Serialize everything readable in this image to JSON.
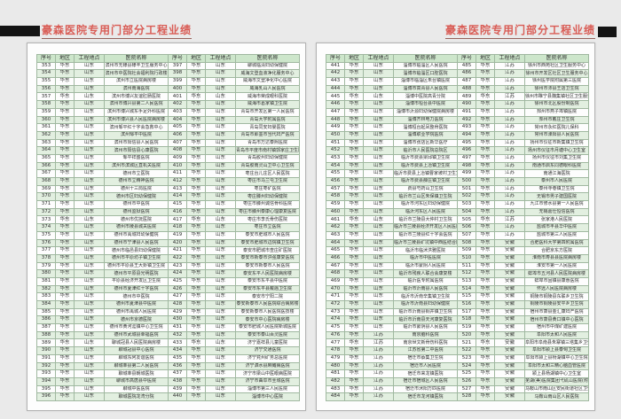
{
  "titles": {
    "left": "豪森医院专用门部分工程业绩",
    "right": "豪森医院专用门部分工程业绩"
  },
  "table": {
    "headers": [
      "序号",
      "地区",
      "工程地点",
      "医院名称"
    ]
  },
  "colors": {
    "title_red": "#d95c55",
    "table_header_bg": "#cde6cb",
    "row_alt_bg": "#e2efe0",
    "grid_line": "#a0b8a0",
    "bar_black": "#141414"
  },
  "pages": [
    {
      "rows": [
        [
          "353",
          "华东",
          "山东",
          "滨州市无棣县棣丰卫生服务中心"
        ],
        [
          "354",
          "华东",
          "山东",
          "滨州市中医院社会福利院行政楼"
        ],
        [
          "355",
          "华东",
          "山东",
          "滨州市立医院病房楼"
        ],
        [
          "356",
          "华东",
          "山东",
          "滨州南海医院"
        ],
        [
          "357",
          "华东",
          "山东",
          "滨州市博兴友谊肛肠医院"
        ],
        [
          "358",
          "华东",
          "山东",
          "滨州市博兴县第二人民医院"
        ],
        [
          "359",
          "华东",
          "山东",
          "滨州市博兴城东手足外科医院"
        ],
        [
          "360",
          "华东",
          "山东",
          "滨州市博兴县人民医院病房楼"
        ],
        [
          "361",
          "华东",
          "山东",
          "滨州邹平红十字会急救中心"
        ],
        [
          "362",
          "华东",
          "山东",
          "滨州邹平中医院"
        ],
        [
          "363",
          "华东",
          "山东",
          "滨州市阳信县人民医院"
        ],
        [
          "364",
          "华东",
          "山东",
          "滨州市阳信县心康医院"
        ],
        [
          "365",
          "华东",
          "山东",
          "邹平祥盛医院"
        ],
        [
          "366",
          "华东",
          "山东",
          "滨州市滨城区直机关医院"
        ],
        [
          "367",
          "华东",
          "山东",
          "德州市立医院"
        ],
        [
          "368",
          "华东",
          "山东",
          "德州市立精神医院"
        ],
        [
          "369",
          "华东",
          "山东",
          "德州十三局医院"
        ],
        [
          "370",
          "华东",
          "山东",
          "德州市区妇幼保健院"
        ],
        [
          "371",
          "华东",
          "山东",
          "德州市中医院"
        ],
        [
          "372",
          "华东",
          "山东",
          "德州监狱医院"
        ],
        [
          "373",
          "华东",
          "山东",
          "德州市优抚医院"
        ],
        [
          "374",
          "华东",
          "山东",
          "德州市陵县城关医院"
        ],
        [
          "375",
          "华东",
          "山东",
          "德州市禹城妇幼保健院"
        ],
        [
          "376",
          "华东",
          "山东",
          "德州市宁津县人民医院"
        ],
        [
          "377",
          "华东",
          "山东",
          "德州市临邑县妇幼保健院"
        ],
        [
          "378",
          "华东",
          "山东",
          "德州市平原坊子镇卫生院"
        ],
        [
          "379",
          "华东",
          "山东",
          "德州市平原县王大卦镇卫生院"
        ],
        [
          "380",
          "华东",
          "山东",
          "德州市平原县光明医院"
        ],
        [
          "381",
          "华东",
          "山东",
          "平原县经济开发区卫生院"
        ],
        [
          "382",
          "华东",
          "山东",
          "德州市夏津红十字医院"
        ],
        [
          "383",
          "华东",
          "山东",
          "德州市中医院"
        ],
        [
          "384",
          "华东",
          "山东",
          "德州市夏津县中医院"
        ],
        [
          "385",
          "华东",
          "山东",
          "德州市禹城人民医院"
        ],
        [
          "386",
          "华东",
          "山东",
          "德州市京德医院"
        ],
        [
          "387",
          "华东",
          "山东",
          "德州市黄河涯镇中心卫生院"
        ],
        [
          "388",
          "华东",
          "山东",
          "德州市武城县幸福医院"
        ],
        [
          "389",
          "华东",
          "山东",
          "聊城冠县人民医院病房楼"
        ],
        [
          "390",
          "华东",
          "山东",
          "聊城冠县中心医院"
        ],
        [
          "391",
          "华东",
          "山东",
          "聊城东阿友谊医院"
        ],
        [
          "392",
          "华东",
          "山东",
          "聊城莘县第二人民医院"
        ],
        [
          "393",
          "华东",
          "山东",
          "聊城莘县朝城医院"
        ],
        [
          "394",
          "华东",
          "山东",
          "聊城市高唐县中医院"
        ],
        [
          "395",
          "华东",
          "山东",
          "聊城中医医院"
        ],
        [
          "396",
          "华东",
          "山东",
          "聊城医院龙湾分院"
        ],
        [
          "397",
          "华东",
          "山东",
          "聊城临清妇幼保健院"
        ],
        [
          "398",
          "华东",
          "山东",
          "威海文登血液净化服务中心"
        ],
        [
          "399",
          "华东",
          "山东",
          "威海市文登净化中心医院"
        ],
        [
          "400",
          "华东",
          "山东",
          "威海乳山人民医院"
        ],
        [
          "401",
          "华东",
          "山东",
          "威海市荣成眼科医院"
        ],
        [
          "402",
          "华东",
          "山东",
          "威海市葛家镇卫生院"
        ],
        [
          "403",
          "华东",
          "山东",
          "青岛市开发区第一人民医院"
        ],
        [
          "404",
          "华东",
          "山东",
          "青岛大学附属医院"
        ],
        [
          "405",
          "华东",
          "山东",
          "青岛同安妇婴医院"
        ],
        [
          "406",
          "华东",
          "山东",
          "青岛市即墨市当代妇产医院"
        ],
        [
          "407",
          "华东",
          "山东",
          "青岛市万达泰熙医院"
        ],
        [
          "408",
          "华东",
          "山东",
          "青岛市平度市南村镇郭家庄卫生院"
        ],
        [
          "409",
          "华东",
          "山东",
          "青岛胶州妇幼保健院"
        ],
        [
          "410",
          "华东",
          "山东",
          "青岛胶南灵山卫中心卫生院"
        ],
        [
          "411",
          "华东",
          "山东",
          "枣庄台儿庄区人民医院"
        ],
        [
          "412",
          "华东",
          "山东",
          "枣庄市马兰屯卫生院"
        ],
        [
          "413",
          "华东",
          "山东",
          "枣庄枣矿医院"
        ],
        [
          "414",
          "华东",
          "山东",
          "枣庄滕州妇幼保健院"
        ],
        [
          "415",
          "华东",
          "山东",
          "枣庄市滕州诚信骨科医院"
        ],
        [
          "416",
          "华东",
          "山东",
          "枣庄市滕州泰康心理康复医院"
        ],
        [
          "417",
          "华东",
          "山东",
          "枣庄市李氏骨伤医院"
        ],
        [
          "418",
          "华东",
          "山东",
          "枣庄市立医院"
        ],
        [
          "419",
          "华东",
          "山东",
          "泰安市肥城市人民医院"
        ],
        [
          "420",
          "华东",
          "山东",
          "泰安市肥城市边院镇卫生院"
        ],
        [
          "421",
          "华东",
          "山东",
          "泰安市肥城市查庄矿医院"
        ],
        [
          "422",
          "华东",
          "山东",
          "泰安市新泰市洪强康复医院"
        ],
        [
          "423",
          "华东",
          "山东",
          "泰安市新泰市人民医院"
        ],
        [
          "424",
          "华东",
          "山东",
          "泰安东平人民医院病房楼"
        ],
        [
          "425",
          "华东",
          "山东",
          "泰安市东平县中医院"
        ],
        [
          "426",
          "华东",
          "山东",
          "泰安市东平县戴庙卫生院"
        ],
        [
          "427",
          "华东",
          "山东",
          "泰安市宁阳二院"
        ],
        [
          "428",
          "华东",
          "山东",
          "泰安新泰市人民医院综合病房楼"
        ],
        [
          "429",
          "华东",
          "山东",
          "泰安新泰市人民医院医技楼"
        ],
        [
          "430",
          "华东",
          "山东",
          "泰安市中心医院病房楼"
        ],
        [
          "431",
          "华东",
          "山东",
          "泰安市肥城人民医院新城医院"
        ],
        [
          "432",
          "华东",
          "山东",
          "泰安市泰山百灵医院"
        ],
        [
          "433",
          "华东",
          "山东",
          "济宁嘉祥县儿童医院"
        ],
        [
          "434",
          "华东",
          "山东",
          "济宁交通医院"
        ],
        [
          "435",
          "华东",
          "山东",
          "济宁兖州矿务总医院"
        ],
        [
          "436",
          "华东",
          "山东",
          "济宁泗水县麻瘫病医院"
        ],
        [
          "437",
          "华东",
          "山东",
          "济宁市梁山中医眼病医院"
        ],
        [
          "438",
          "华东",
          "山东",
          "济宁市曲阜市圣城医院"
        ],
        [
          "439",
          "华东",
          "山东",
          "淄博市第三人民医院"
        ],
        [
          "440",
          "华东",
          "山东",
          "淄博市中心医院"
        ]
      ]
    },
    {
      "rows": [
        [
          "441",
          "华东",
          "山东",
          "淄博市临淄区人民医院"
        ],
        [
          "442",
          "华东",
          "山东",
          "淄博市临淄区口腔医院"
        ],
        [
          "443",
          "华东",
          "山东",
          "淄博市临淄区朱台镇医院"
        ],
        [
          "444",
          "华东",
          "山东",
          "淄博市高青县人民医院"
        ],
        [
          "445",
          "华东",
          "山东",
          "淄博中医院高青分院"
        ],
        [
          "446",
          "华东",
          "山东",
          "淄博市桓台县中医院"
        ],
        [
          "447",
          "华东",
          "山东",
          "淄博市沂源妇幼保健院病房楼"
        ],
        [
          "448",
          "华东",
          "山东",
          "淄博齐林电力医院"
        ],
        [
          "449",
          "华东",
          "山东",
          "淄博桓台起凤整骨医院"
        ],
        [
          "450",
          "华东",
          "山东",
          "淄博职业学院医院"
        ],
        [
          "451",
          "华东",
          "山东",
          "淄博市张店区新华医疗"
        ],
        [
          "452",
          "华东",
          "山东",
          "临沂市人民医院总院区"
        ],
        [
          "453",
          "华东",
          "山东",
          "临沂市费县梁邱镇卫生院"
        ],
        [
          "454",
          "华东",
          "山东",
          "临沂市费县上冶镇卫生院"
        ],
        [
          "455",
          "华东",
          "山东",
          "临沂市费县上冶镇曹家坡村卫生室"
        ],
        [
          "456",
          "华东",
          "山东",
          "临沂市费县薛庄镇卫生院"
        ],
        [
          "457",
          "华东",
          "山东",
          "费县芍药山卫生院"
        ],
        [
          "458",
          "华东",
          "山东",
          "临沂市兰山区朱保镇卫生院"
        ],
        [
          "459",
          "华东",
          "山东",
          "临沂市河东区妇幼保健院"
        ],
        [
          "460",
          "华东",
          "山东",
          "临沂河东区人民医院"
        ],
        [
          "461",
          "华东",
          "山东",
          "临沂市兰陵县大仲村卫生院"
        ],
        [
          "462",
          "华东",
          "山东",
          "临沂市兰陵县经济开发区人民医院"
        ],
        [
          "463",
          "华东",
          "山东",
          "临沂市兰陵县红十字会医院"
        ],
        [
          "464",
          "华东",
          "山东",
          "临沂市兰陵县矿坑镇中西医结合医院"
        ],
        [
          "465",
          "华东",
          "山东",
          "临沂市临沭洪雅医院"
        ],
        [
          "466",
          "华东",
          "山东",
          "临沂市中医医院"
        ],
        [
          "467",
          "华东",
          "山东",
          "临沂市蒙阴人民医院"
        ],
        [
          "468",
          "华东",
          "山东",
          "临沂市残疾人联合会康复楼"
        ],
        [
          "469",
          "华东",
          "山东",
          "临沂医专附属医院"
        ],
        [
          "470",
          "华东",
          "山东",
          "临沂市沂南县人民医院"
        ],
        [
          "471",
          "华东",
          "山东",
          "临沂市沂南辛集镇卫生院"
        ],
        [
          "472",
          "华东",
          "山东",
          "临沂市沂南县妇幼保健院"
        ],
        [
          "473",
          "华东",
          "山东",
          "临沂市沂南县铜井镇卫生院"
        ],
        [
          "474",
          "华东",
          "山东",
          "临沂市沂南县天河康复医院"
        ],
        [
          "475",
          "华东",
          "山东",
          "临沂市蒙阴县人民医院"
        ],
        [
          "476",
          "华东",
          "江苏",
          "南京脑科医院"
        ],
        [
          "477",
          "华东",
          "江苏",
          "南京世文新骨伤科医院"
        ],
        [
          "478",
          "华东",
          "江苏",
          "江苏省第二中医院"
        ],
        [
          "479",
          "华东",
          "江苏",
          "宿迁市蔡集卫生院"
        ],
        [
          "480",
          "华东",
          "江苏",
          "宿迁市人民医院"
        ],
        [
          "481",
          "华东",
          "江苏",
          "宿迁市来龙镇医院"
        ],
        [
          "482",
          "华东",
          "江苏",
          "宿迁市宿城区人民医院"
        ],
        [
          "483",
          "华东",
          "江苏",
          "宿迁市沭阳万匹医院"
        ],
        [
          "484",
          "华东",
          "江苏",
          "宿迁市龙河镇医院"
        ],
        [
          "485",
          "华东",
          "江苏",
          "徐州市西苑社区卫生服务中心"
        ],
        [
          "486",
          "华东",
          "江苏",
          "徐州市开发区社区卫生服务中心"
        ],
        [
          "487",
          "华东",
          "江苏",
          "徐州医学院附属第三医院"
        ],
        [
          "488",
          "华东",
          "江苏",
          "徐州市沛县王店卫生院"
        ],
        [
          "489",
          "华东",
          "江苏",
          "徐州市睢宁县魏集镇社区卫生服务中心"
        ],
        [
          "490",
          "华东",
          "江苏",
          "徐州市北区股份制医院"
        ],
        [
          "491",
          "华东",
          "江苏",
          "邳州市燕子埠镇医院"
        ],
        [
          "492",
          "华东",
          "江苏",
          "邳州市戴庄卫生院"
        ],
        [
          "493",
          "华东",
          "江苏",
          "常州市永红医院儿保科"
        ],
        [
          "494",
          "华东",
          "江苏",
          "常州市溧阳县人民医院"
        ],
        [
          "495",
          "华东",
          "江苏",
          "扬州市仪征市新集镇卫生院"
        ],
        [
          "496",
          "华东",
          "江苏",
          "扬州市仪征市月塘中心卫生室"
        ],
        [
          "497",
          "华东",
          "江苏",
          "扬州市仪征市刘集卫生院"
        ],
        [
          "498",
          "华东",
          "江苏",
          "南通市启东同德眼科医院"
        ],
        [
          "499",
          "华东",
          "江苏",
          "南通江海医院"
        ],
        [
          "500",
          "华东",
          "江苏",
          "泰州市人民医院"
        ],
        [
          "501",
          "华东",
          "江苏",
          "泰州寺巷镇卫生院"
        ],
        [
          "502",
          "华东",
          "江苏",
          "无锡市男子建国医院"
        ],
        [
          "503",
          "华东",
          "江苏",
          "九江市修水县第一人民医院"
        ],
        [
          "504",
          "华东",
          "江苏",
          "无锡嘉仕恒信医院"
        ],
        [
          "505",
          "华东",
          "江苏",
          "张家港人民医院"
        ],
        [
          "506",
          "华东",
          "江苏",
          "盐城市丰县华中医院"
        ],
        [
          "507",
          "华东",
          "江苏",
          "盐城市第三人民医院"
        ],
        [
          "508",
          "华东",
          "安徽",
          "合肥医科大学第四附属医院"
        ],
        [
          "509",
          "华东",
          "安徽",
          "合肥京东方医院"
        ],
        [
          "510",
          "华东",
          "安徽",
          "淮南市寿县县医院病房楼"
        ],
        [
          "511",
          "华东",
          "安徽",
          "淮安市第一人民医院"
        ],
        [
          "512",
          "华东",
          "安徽",
          "蚌埠市五河县人民医院病房楼"
        ],
        [
          "513",
          "华东",
          "安徽",
          "蚌埠市固镇县康惠医院"
        ],
        [
          "514",
          "华东",
          "安徽",
          "怀远人民医院病房楼"
        ],
        [
          "515",
          "华东",
          "安徽",
          "铜陵市铜陵县东联乡卫生院"
        ],
        [
          "516",
          "华东",
          "安徽",
          "铜陵市铜陵县安平乡卫生院"
        ],
        [
          "517",
          "华东",
          "安徽",
          "宿州市萧县金汇康妇产医院"
        ],
        [
          "518",
          "华东",
          "安徽",
          "宿州市萧县黄口镇中心医院"
        ],
        [
          "519",
          "华东",
          "安徽",
          "宿州市中煤矿建医院"
        ],
        [
          "520",
          "华东",
          "安徽",
          "阜阳市太和人民医院"
        ],
        [
          "521",
          "华东",
          "安徽",
          "阜阳市阜南县朱寨镇三塔集乡卫生院"
        ],
        [
          "522",
          "华东",
          "安徽",
          "阜阳市颍上县泰甸卫生院"
        ],
        [
          "523",
          "华东",
          "安徽",
          "阜阳市颍上县杨湖镇中心卫生院"
        ],
        [
          "524",
          "华东",
          "安徽",
          "阜阳市太和三精心脑血管医院"
        ],
        [
          "525",
          "华东",
          "安徽",
          "颍上县杨湖镇中心卫生室"
        ],
        [
          "526",
          "华东",
          "安徽",
          "芜湖(美)医院集团弋矶山医院(附属医院)"
        ],
        [
          "527",
          "华东",
          "安徽",
          "马鞍山市雨山区安民街道社区卫生中心"
        ],
        [
          "528",
          "华东",
          "安徽",
          "马鞍山雨山区人民医院"
        ]
      ]
    }
  ]
}
